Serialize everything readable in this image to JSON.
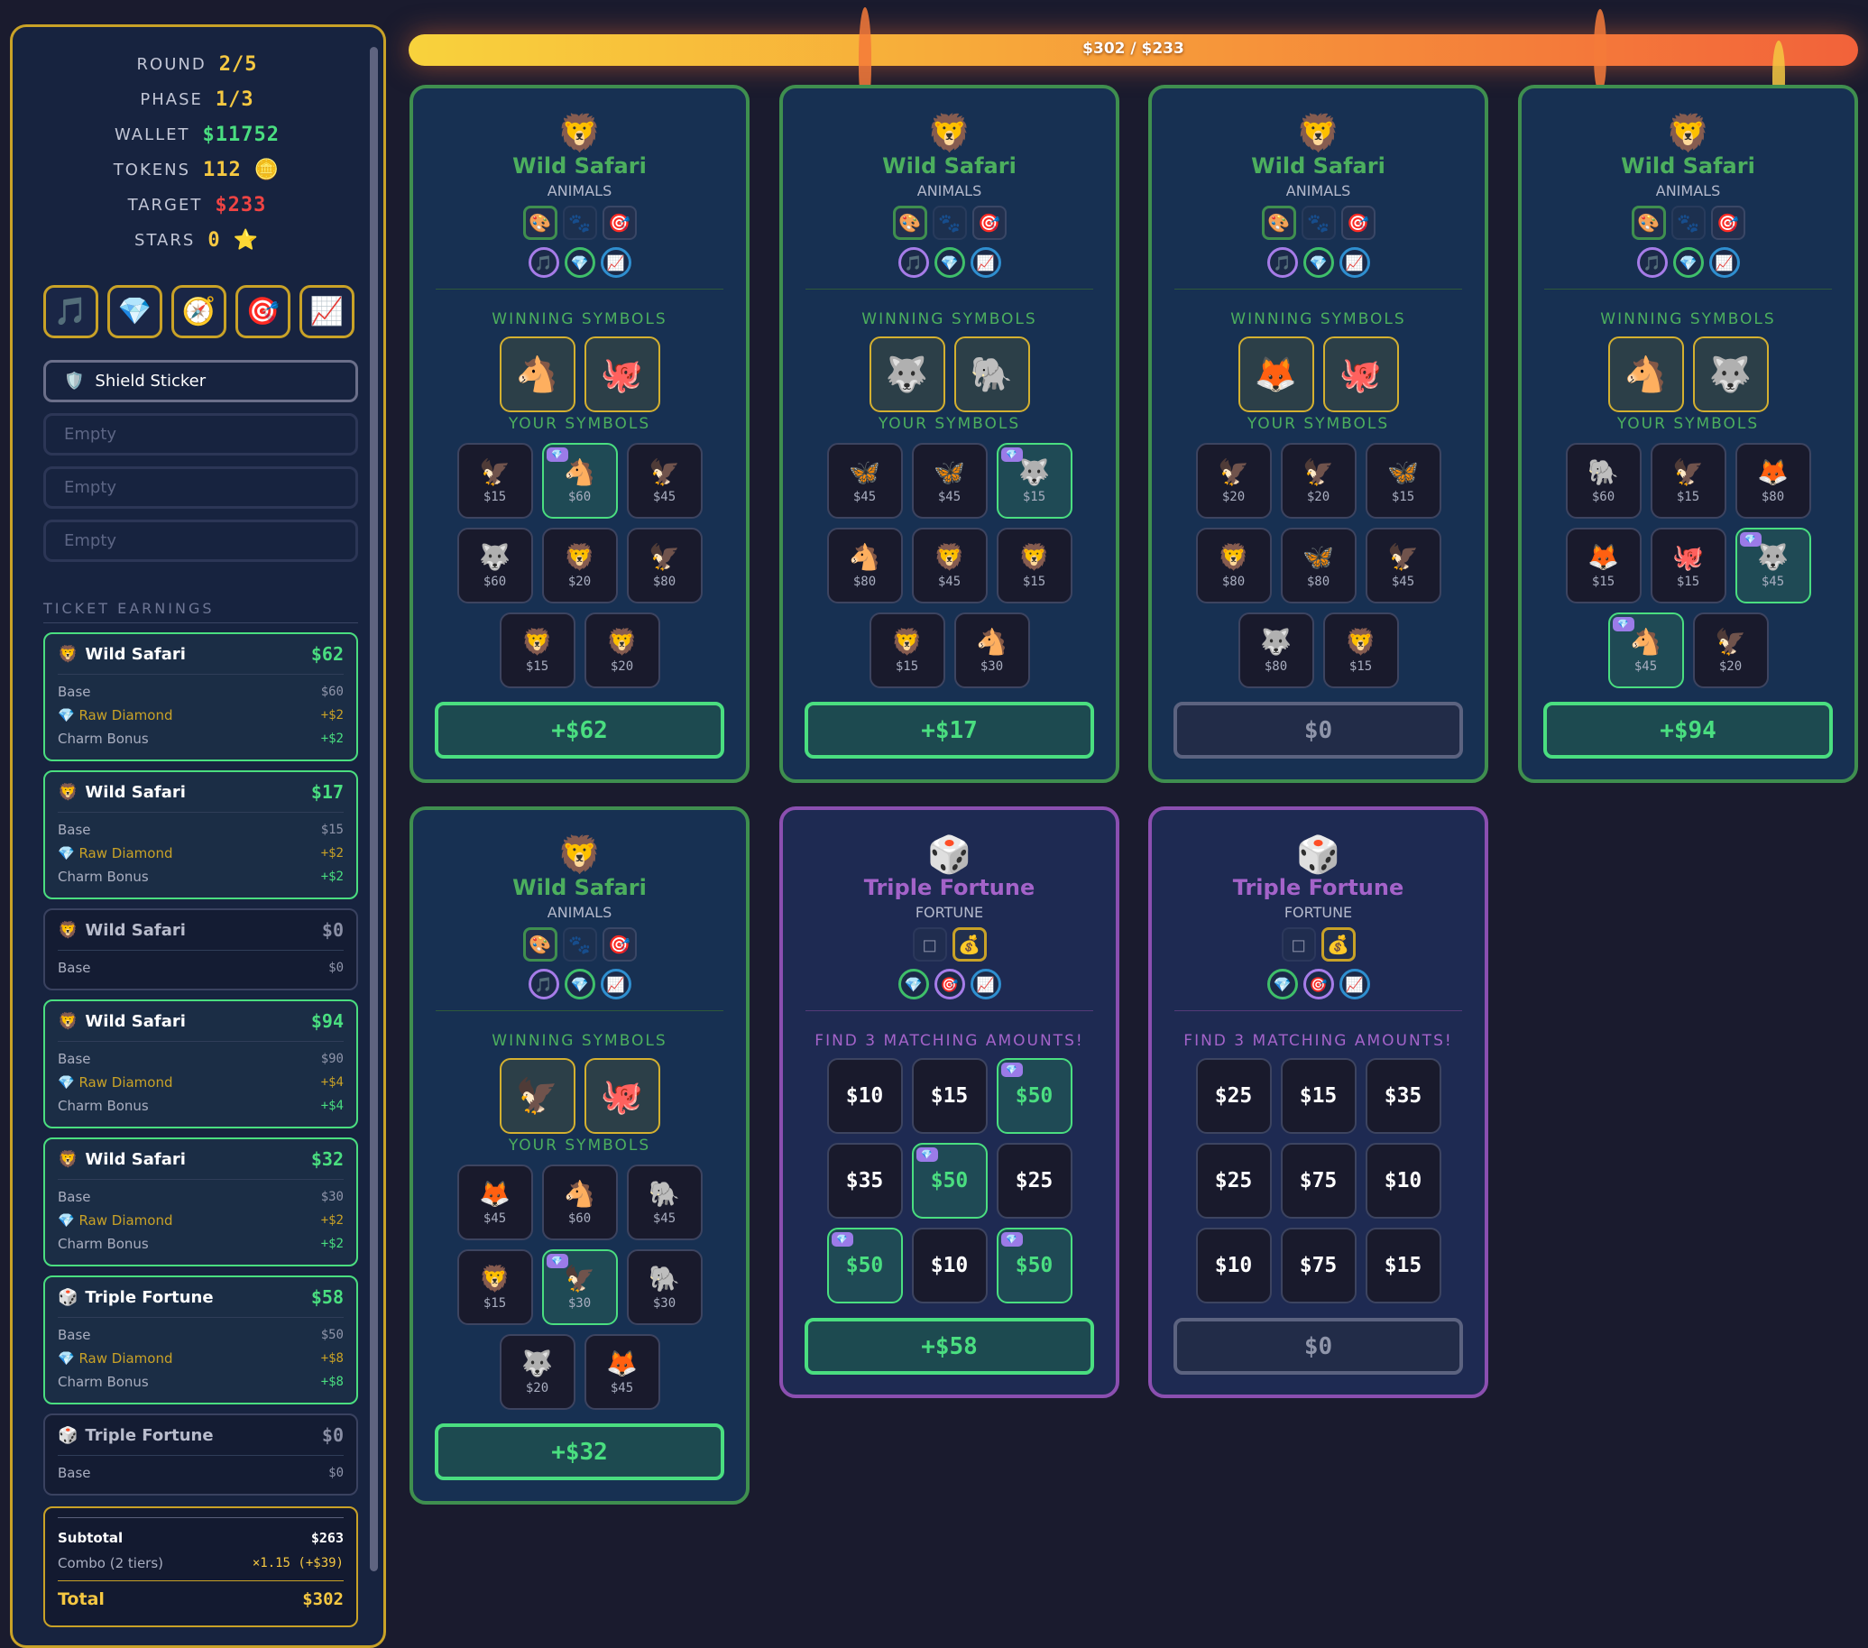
{
  "progress": {
    "label": "$302 / $233",
    "fill_percent": 100
  },
  "stats": [
    {
      "label": "ROUND",
      "value": "2/5",
      "color": "#f5c842"
    },
    {
      "label": "PHASE",
      "value": "1/3",
      "color": "#f5c842"
    },
    {
      "label": "WALLET",
      "value": "$11752",
      "color": "#4ade80"
    },
    {
      "label": "TOKENS",
      "value": "112",
      "color": "#f5c842",
      "icon": "🪙"
    },
    {
      "label": "TARGET",
      "value": "$233",
      "color": "#ef4444"
    },
    {
      "label": "STARS",
      "value": "0",
      "color": "#f5c842",
      "icon": "⭐"
    }
  ],
  "charms": [
    {
      "name": "music-note",
      "glyph": "🎵"
    },
    {
      "name": "diamond",
      "glyph": "💎"
    },
    {
      "name": "compass",
      "glyph": "🧭"
    },
    {
      "name": "target",
      "glyph": "🎯"
    },
    {
      "name": "chart",
      "glyph": "📈"
    }
  ],
  "stickers": {
    "active": {
      "label": "Shield Sticker",
      "glyph": "🛡️"
    },
    "empty": [
      "Empty",
      "Empty",
      "Empty"
    ]
  },
  "earnings": {
    "title": "TICKET EARNINGS",
    "entries": [
      {
        "icon": "🦁",
        "name": "Wild Safari",
        "amount": "$62",
        "lines": [
          [
            "Base",
            "$60"
          ],
          [
            "Raw Diamond",
            "+$2"
          ],
          [
            "Charm Bonus",
            "+$2"
          ]
        ]
      },
      {
        "icon": "🦁",
        "name": "Wild Safari",
        "amount": "$17",
        "lines": [
          [
            "Base",
            "$15"
          ],
          [
            "Raw Diamond",
            "+$2"
          ],
          [
            "Charm Bonus",
            "+$2"
          ]
        ]
      },
      {
        "icon": "🦁",
        "name": "Wild Safari",
        "amount": "$0",
        "lines": [
          [
            "Base",
            "$0"
          ]
        ]
      },
      {
        "icon": "🦁",
        "name": "Wild Safari",
        "amount": "$94",
        "lines": [
          [
            "Base",
            "$90"
          ],
          [
            "Raw Diamond",
            "+$4"
          ],
          [
            "Charm Bonus",
            "+$4"
          ]
        ]
      },
      {
        "icon": "🦁",
        "name": "Wild Safari",
        "amount": "$32",
        "lines": [
          [
            "Base",
            "$30"
          ],
          [
            "Raw Diamond",
            "+$2"
          ],
          [
            "Charm Bonus",
            "+$2"
          ]
        ]
      },
      {
        "icon": "🎲",
        "name": "Triple Fortune",
        "amount": "$58",
        "lines": [
          [
            "Base",
            "$50"
          ],
          [
            "Raw Diamond",
            "+$8"
          ],
          [
            "Charm Bonus",
            "+$8"
          ]
        ]
      },
      {
        "icon": "🎲",
        "name": "Triple Fortune",
        "amount": "$0",
        "lines": [
          [
            "Base",
            "$0"
          ]
        ]
      }
    ],
    "subtotal_label": "Subtotal",
    "subtotal": "$263",
    "combo_label": "Combo (2 tiers)",
    "combo": "×1.15 (+$39)",
    "total_label": "Total",
    "total": "$302"
  },
  "cards": [
    {
      "type": "animals",
      "icon": "🦁",
      "title": "Wild Safari",
      "subtitle": "ANIMALS",
      "label": "WINNING SYMBOLS",
      "your_label": "YOUR SYMBOLS",
      "winning": [
        "🐴",
        "🐙"
      ],
      "cells": [
        [
          "🦅",
          "$15",
          0
        ],
        [
          "🐴",
          "$60",
          1
        ],
        [
          "🦅",
          "$45",
          0
        ],
        [
          "🐺",
          "$60",
          0
        ],
        [
          "🦁",
          "$20",
          0
        ],
        [
          "🦅",
          "$80",
          0
        ],
        [
          "🦁",
          "$15",
          0
        ],
        [
          "🦁",
          "$20",
          0
        ]
      ],
      "payout": "+$62"
    },
    {
      "type": "animals",
      "icon": "🦁",
      "title": "Wild Safari",
      "subtitle": "ANIMALS",
      "label": "WINNING SYMBOLS",
      "your_label": "YOUR SYMBOLS",
      "winning": [
        "🐺",
        "🐘"
      ],
      "cells": [
        [
          "🦋",
          "$45",
          0
        ],
        [
          "🦋",
          "$45",
          0
        ],
        [
          "🐺",
          "$15",
          1
        ],
        [
          "🐴",
          "$80",
          0
        ],
        [
          "🦁",
          "$45",
          0
        ],
        [
          "🦁",
          "$15",
          0
        ],
        [
          "🦁",
          "$15",
          0
        ],
        [
          "🐴",
          "$30",
          0
        ]
      ],
      "payout": "+$17"
    },
    {
      "type": "animals",
      "icon": "🦁",
      "title": "Wild Safari",
      "subtitle": "ANIMALS",
      "label": "WINNING SYMBOLS",
      "your_label": "YOUR SYMBOLS",
      "winning": [
        "🦊",
        "🐙"
      ],
      "cells": [
        [
          "🦅",
          "$20",
          0
        ],
        [
          "🦅",
          "$20",
          0
        ],
        [
          "🦋",
          "$15",
          0
        ],
        [
          "🦁",
          "$80",
          0
        ],
        [
          "🦋",
          "$80",
          0
        ],
        [
          "🦅",
          "$45",
          0
        ],
        [
          "🐺",
          "$80",
          0
        ],
        [
          "🦁",
          "$15",
          0
        ]
      ],
      "payout": "$0"
    },
    {
      "type": "animals",
      "icon": "🦁",
      "title": "Wild Safari",
      "subtitle": "ANIMALS",
      "label": "WINNING SYMBOLS",
      "your_label": "YOUR SYMBOLS",
      "winning": [
        "🐴",
        "🐺"
      ],
      "cells": [
        [
          "🐘",
          "$60",
          0
        ],
        [
          "🦅",
          "$15",
          0
        ],
        [
          "🦊",
          "$80",
          0
        ],
        [
          "🦊",
          "$15",
          0
        ],
        [
          "🐙",
          "$15",
          0
        ],
        [
          "🐺",
          "$45",
          1
        ],
        [
          "🐴",
          "$45",
          1
        ],
        [
          "🦅",
          "$20",
          0
        ]
      ],
      "payout": "+$94"
    },
    {
      "type": "animals",
      "icon": "🦁",
      "title": "Wild Safari",
      "subtitle": "ANIMALS",
      "label": "WINNING SYMBOLS",
      "your_label": "YOUR SYMBOLS",
      "winning": [
        "🦅",
        "🐙"
      ],
      "cells": [
        [
          "🦊",
          "$45",
          0
        ],
        [
          "🐴",
          "$60",
          0
        ],
        [
          "🐘",
          "$45",
          0
        ],
        [
          "🦁",
          "$15",
          0
        ],
        [
          "🦅",
          "$30",
          1
        ],
        [
          "🐘",
          "$30",
          0
        ],
        [
          "🐺",
          "$20",
          0
        ],
        [
          "🦊",
          "$45",
          0
        ]
      ],
      "payout": "+$32"
    },
    {
      "type": "fortune",
      "icon": "🎲",
      "title": "Triple Fortune",
      "subtitle": "FORTUNE",
      "label": "FIND 3 MATCHING AMOUNTS!",
      "cells": [
        [
          "",
          "$10",
          0
        ],
        [
          "",
          "$15",
          0
        ],
        [
          "",
          "$50",
          1
        ],
        [
          "",
          "$35",
          0
        ],
        [
          "",
          "$50",
          1
        ],
        [
          "",
          "$25",
          0
        ],
        [
          "",
          "$50",
          1
        ],
        [
          "",
          "$10",
          0
        ],
        [
          "",
          "$50",
          1
        ]
      ],
      "payout": "+$58"
    },
    {
      "type": "fortune",
      "icon": "🎲",
      "title": "Triple Fortune",
      "subtitle": "FORTUNE",
      "label": "FIND 3 MATCHING AMOUNTS!",
      "cells": [
        [
          "",
          "$25",
          0
        ],
        [
          "",
          "$15",
          0
        ],
        [
          "",
          "$35",
          0
        ],
        [
          "",
          "$25",
          0
        ],
        [
          "",
          "$75",
          0
        ],
        [
          "",
          "$10",
          0
        ],
        [
          "",
          "$10",
          0
        ],
        [
          "",
          "$75",
          0
        ],
        [
          "",
          "$15",
          0
        ]
      ],
      "payout": "$0"
    }
  ],
  "card_charms": {
    "animals": {
      "squares": [
        [
          "palette",
          "🎨",
          "on"
        ],
        [
          "paws",
          "🐾",
          "dim"
        ],
        [
          "target",
          "🎯",
          ""
        ]
      ],
      "circles": [
        [
          "music-note",
          "🎵",
          "#a67ce8"
        ],
        [
          "diamond",
          "💎",
          "#3fbf6a"
        ],
        [
          "chart",
          "📈",
          "#2f8fd0"
        ]
      ]
    },
    "fortune": {
      "squares": [
        [
          "square",
          "◻",
          "dim"
        ],
        [
          "money-bag",
          "💰",
          "gold"
        ]
      ],
      "circles": [
        [
          "diamond",
          "💎",
          "#3fbf6a"
        ],
        [
          "target",
          "🎯",
          "#a67ce8"
        ],
        [
          "chart",
          "📈",
          "#2f8fd0"
        ]
      ]
    }
  },
  "colors": {
    "accent_gold": "#c9a227",
    "win_green": "#4ade80",
    "animal_border": "#3f8f4f",
    "fortune_border": "#8b4fb0"
  }
}
